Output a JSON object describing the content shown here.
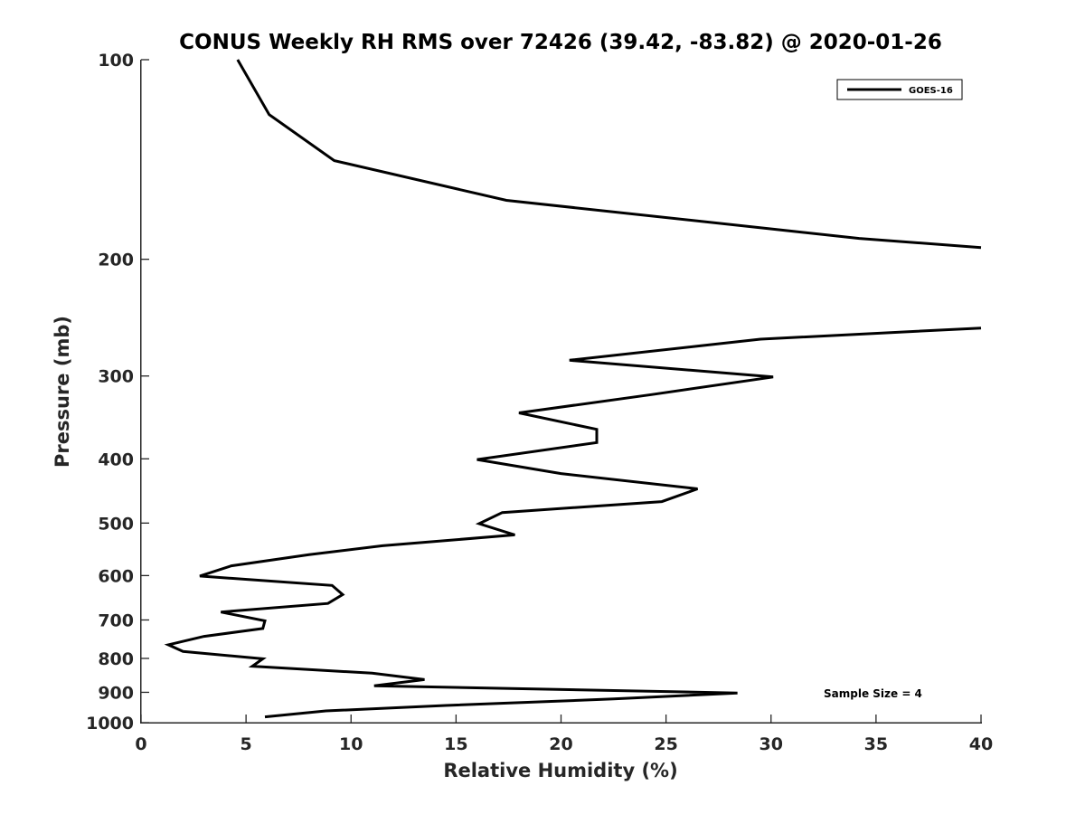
{
  "chart_data": {
    "type": "line",
    "title": "CONUS Weekly RH RMS over 72426 (39.42, -83.82) @ 2020-01-26",
    "xlabel": "Relative Humidity (%)",
    "ylabel": "Pressure (mb)",
    "xlim": [
      0,
      40
    ],
    "ylim": [
      100,
      1000
    ],
    "y_scale": "log",
    "y_reversed": true,
    "x_ticks": [
      "0",
      "5",
      "10",
      "15",
      "20",
      "25",
      "30",
      "35",
      "40"
    ],
    "y_ticks": [
      {
        "value": 100,
        "label": "100"
      },
      {
        "value": 200,
        "label": "200"
      },
      {
        "value": 300,
        "label": "300"
      },
      {
        "value": 400,
        "label": "400"
      },
      {
        "value": 500,
        "label": "500"
      },
      {
        "value": 600,
        "label": "600"
      },
      {
        "value": 700,
        "label": "700"
      },
      {
        "value": 800,
        "label": "800"
      },
      {
        "value": 900,
        "label": "900"
      },
      {
        "value": 1000,
        "label": "1000"
      }
    ],
    "grid": false,
    "legend_position": "top-right",
    "annotation": "Sample Size = 4",
    "series": [
      {
        "name": "GOES-16",
        "color": "#000000",
        "segments": [
          [
            {
              "x": 4.6,
              "y": 100
            },
            {
              "x": 6.1,
              "y": 121
            },
            {
              "x": 9.2,
              "y": 142
            },
            {
              "x": 17.4,
              "y": 163
            },
            {
              "x": 34.2,
              "y": 186
            },
            {
              "x": 40.0,
              "y": 192
            }
          ],
          [
            {
              "x": 40.0,
              "y": 254
            },
            {
              "x": 29.5,
              "y": 264
            },
            {
              "x": 20.4,
              "y": 284
            },
            {
              "x": 30.1,
              "y": 301
            },
            {
              "x": 24.3,
              "y": 320
            },
            {
              "x": 18.0,
              "y": 341
            },
            {
              "x": 21.7,
              "y": 361
            },
            {
              "x": 21.7,
              "y": 378
            },
            {
              "x": 16.0,
              "y": 401
            },
            {
              "x": 20.0,
              "y": 421
            },
            {
              "x": 26.5,
              "y": 444
            },
            {
              "x": 24.8,
              "y": 464
            },
            {
              "x": 17.2,
              "y": 482
            },
            {
              "x": 16.1,
              "y": 501
            },
            {
              "x": 17.8,
              "y": 521
            },
            {
              "x": 11.5,
              "y": 541
            },
            {
              "x": 8.0,
              "y": 558
            },
            {
              "x": 4.3,
              "y": 580
            },
            {
              "x": 2.8,
              "y": 601
            },
            {
              "x": 9.1,
              "y": 621
            },
            {
              "x": 9.6,
              "y": 641
            },
            {
              "x": 8.9,
              "y": 661
            },
            {
              "x": 3.8,
              "y": 681
            },
            {
              "x": 5.9,
              "y": 702
            },
            {
              "x": 5.8,
              "y": 721
            },
            {
              "x": 3.0,
              "y": 741
            },
            {
              "x": 1.3,
              "y": 763
            },
            {
              "x": 2.0,
              "y": 781
            },
            {
              "x": 5.8,
              "y": 801
            },
            {
              "x": 5.3,
              "y": 822
            },
            {
              "x": 11.0,
              "y": 842
            },
            {
              "x": 13.5,
              "y": 861
            },
            {
              "x": 11.1,
              "y": 880
            },
            {
              "x": 28.4,
              "y": 902
            },
            {
              "x": 22.5,
              "y": 921
            },
            {
              "x": 14.5,
              "y": 942
            },
            {
              "x": 8.8,
              "y": 960
            },
            {
              "x": 5.9,
              "y": 980
            }
          ]
        ]
      }
    ]
  }
}
